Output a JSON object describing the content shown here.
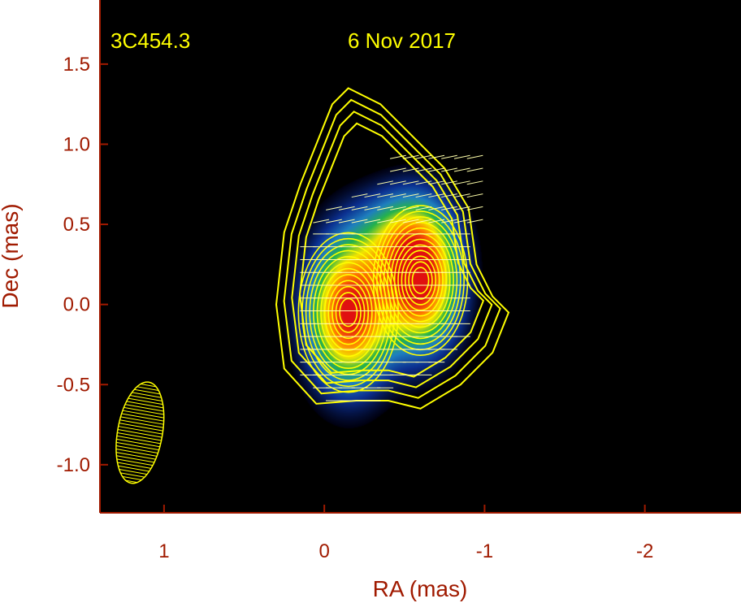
{
  "chart_data": {
    "type": "heatmap",
    "source_label": "3C454.3",
    "date_label": "6 Nov 2017",
    "xlabel": "RA (mas)",
    "ylabel": "Dec (mas)",
    "xlim": [
      1.4,
      -2.6
    ],
    "ylim": [
      -1.3,
      1.9
    ],
    "x_ticks": [
      1,
      0,
      -1,
      -2
    ],
    "x_tick_labels": [
      "1",
      "0",
      "-1",
      "-2"
    ],
    "y_ticks": [
      1.5,
      1.0,
      0.5,
      0.0,
      -0.5,
      -1.0
    ],
    "y_tick_labels": [
      "1.5",
      "1.0",
      "0.5",
      "0.0",
      "-0.5",
      "-1.0"
    ],
    "grid": false,
    "colormap": [
      "#00000f",
      "#0b2f8f",
      "#1f7fbf",
      "#25b34a",
      "#f2e400",
      "#ff7a00",
      "#e01010"
    ],
    "components": [
      {
        "x": -0.15,
        "y": -0.05,
        "peak": 1.0,
        "sx": 0.18,
        "sy": 0.32
      },
      {
        "x": -0.6,
        "y": 0.15,
        "peak": 1.0,
        "sx": 0.17,
        "sy": 0.3
      },
      {
        "x": -0.45,
        "y": 0.45,
        "peak": 0.35,
        "sx": 0.2,
        "sy": 0.2
      }
    ],
    "contour_color": "#ffff00",
    "beam": {
      "x": 1.15,
      "y": -0.8,
      "major": 0.32,
      "minor": 0.14,
      "pa_deg": 10
    }
  },
  "colors": {
    "background": "#000000",
    "axis": "#a01a00",
    "annotation": "#ffff00"
  }
}
